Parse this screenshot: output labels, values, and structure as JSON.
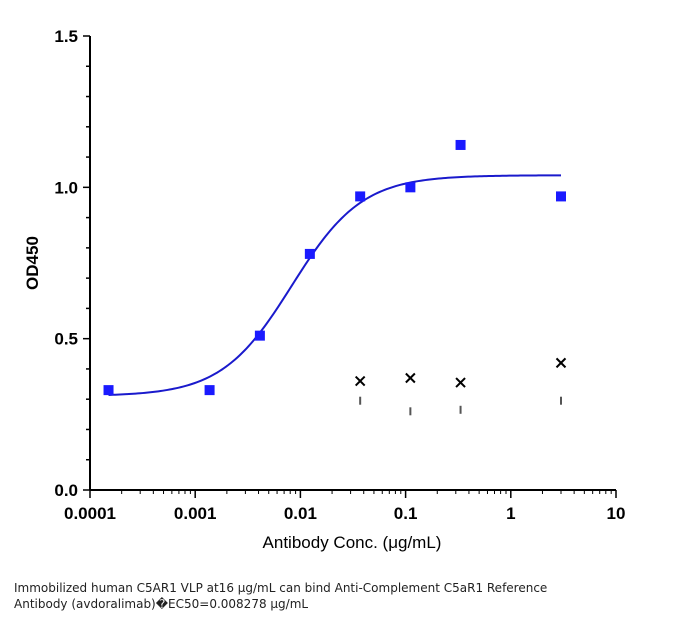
{
  "chart_data": {
    "type": "scatter",
    "xlabel": "Antibody Conc. (μg/mL)",
    "ylabel": "OD450",
    "x_scale": "log",
    "xlim": [
      0.0001,
      10
    ],
    "ylim": [
      0.0,
      1.5
    ],
    "x_ticks": [
      "0.0001",
      "0.001",
      "0.01",
      "0.1",
      "1",
      "10"
    ],
    "y_ticks": [
      "0.0",
      "0.5",
      "1.0",
      "1.5"
    ],
    "grid": false,
    "colors": {
      "series1": "#1a1aff",
      "fit": "#1a1acc",
      "control": "#000000",
      "errbar": "#555555"
    },
    "series": [
      {
        "marker": "square",
        "points": [
          {
            "x": 0.00015,
            "y": 0.33
          },
          {
            "x": 0.00137,
            "y": 0.33
          },
          {
            "x": 0.00412,
            "y": 0.51
          },
          {
            "x": 0.0123,
            "y": 0.78
          },
          {
            "x": 0.037,
            "y": 0.97
          },
          {
            "x": 0.111,
            "y": 1.0
          },
          {
            "x": 0.333,
            "y": 1.14
          },
          {
            "x": 3.0,
            "y": 0.97
          }
        ]
      },
      {
        "marker": "x",
        "points": [
          {
            "x": 0.037,
            "y": 0.36
          },
          {
            "x": 0.111,
            "y": 0.37
          },
          {
            "x": 0.333,
            "y": 0.355
          },
          {
            "x": 3.0,
            "y": 0.42
          }
        ]
      }
    ],
    "error_marks": [
      {
        "x": 0.037,
        "y": 0.295
      },
      {
        "x": 0.111,
        "y": 0.26
      },
      {
        "x": 0.333,
        "y": 0.265
      },
      {
        "x": 3.0,
        "y": 0.295
      }
    ],
    "fit": {
      "model": "4PL",
      "bottom": 0.31,
      "top": 1.04,
      "ec50": 0.008278,
      "hill": 1.3,
      "x_range": [
        0.00015,
        3.0
      ]
    }
  },
  "caption": {
    "line1": "Immobilized human C5AR1 VLP at16  μg/mL can bind  Anti-Complement C5aR1 Reference",
    "line2": "Antibody (avdoralimab)�EC50=0.008278 μg/mL"
  }
}
